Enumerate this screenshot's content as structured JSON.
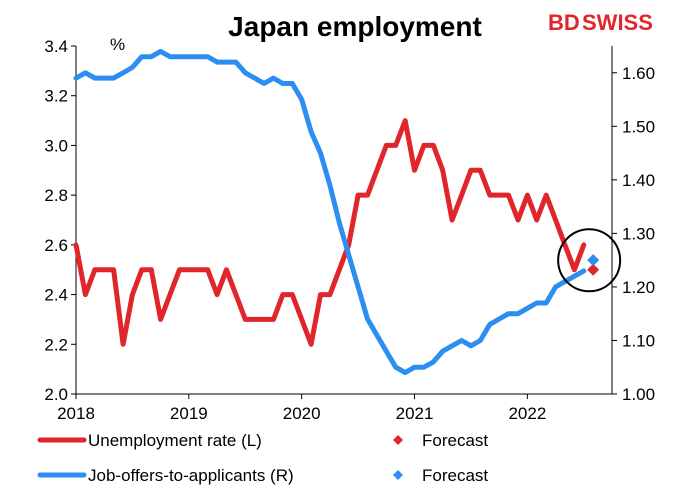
{
  "header": {
    "title": "Japan employment",
    "logo_text_left": "BD",
    "logo_text_right": "SWISS"
  },
  "colors": {
    "unemployment": "#e0262b",
    "job_offers": "#2b8ef0",
    "axis": "#000000",
    "circle": "#000000"
  },
  "chart_data": {
    "type": "line",
    "title": "Japan employment",
    "left_axis": {
      "unit_label": "%",
      "ylim": [
        2.0,
        3.4
      ],
      "ticks": [
        "2.0",
        "2.2",
        "2.4",
        "2.6",
        "2.8",
        "3.0",
        "3.2",
        "3.4"
      ]
    },
    "right_axis": {
      "ylim": [
        1.0,
        1.65
      ],
      "ticks": [
        "1.00",
        "1.10",
        "1.20",
        "1.30",
        "1.40",
        "1.50",
        "1.60"
      ]
    },
    "x_axis": {
      "ticks": [
        "2018",
        "2019",
        "2020",
        "2021",
        "2022"
      ],
      "xlim": [
        2018.0,
        2022.75
      ]
    },
    "series": [
      {
        "name": "Unemployment rate (L)",
        "axis": "left",
        "color": "#e0262b",
        "points": [
          [
            2018.0,
            2.6
          ],
          [
            2018.083,
            2.4
          ],
          [
            2018.167,
            2.5
          ],
          [
            2018.25,
            2.5
          ],
          [
            2018.333,
            2.5
          ],
          [
            2018.417,
            2.2
          ],
          [
            2018.5,
            2.4
          ],
          [
            2018.583,
            2.5
          ],
          [
            2018.667,
            2.5
          ],
          [
            2018.75,
            2.3
          ],
          [
            2018.833,
            2.4
          ],
          [
            2018.917,
            2.5
          ],
          [
            2019.0,
            2.5
          ],
          [
            2019.083,
            2.5
          ],
          [
            2019.167,
            2.5
          ],
          [
            2019.25,
            2.4
          ],
          [
            2019.333,
            2.5
          ],
          [
            2019.417,
            2.4
          ],
          [
            2019.5,
            2.3
          ],
          [
            2019.583,
            2.3
          ],
          [
            2019.667,
            2.3
          ],
          [
            2019.75,
            2.3
          ],
          [
            2019.833,
            2.4
          ],
          [
            2019.917,
            2.4
          ],
          [
            2020.0,
            2.3
          ],
          [
            2020.083,
            2.2
          ],
          [
            2020.167,
            2.4
          ],
          [
            2020.25,
            2.4
          ],
          [
            2020.333,
            2.5
          ],
          [
            2020.417,
            2.6
          ],
          [
            2020.5,
            2.8
          ],
          [
            2020.583,
            2.8
          ],
          [
            2020.667,
            2.9
          ],
          [
            2020.75,
            3.0
          ],
          [
            2020.833,
            3.0
          ],
          [
            2020.917,
            3.1
          ],
          [
            2021.0,
            2.9
          ],
          [
            2021.083,
            3.0
          ],
          [
            2021.167,
            3.0
          ],
          [
            2021.25,
            2.9
          ],
          [
            2021.333,
            2.7
          ],
          [
            2021.417,
            2.8
          ],
          [
            2021.5,
            2.9
          ],
          [
            2021.583,
            2.9
          ],
          [
            2021.667,
            2.8
          ],
          [
            2021.75,
            2.8
          ],
          [
            2021.833,
            2.8
          ],
          [
            2021.917,
            2.7
          ],
          [
            2022.0,
            2.8
          ],
          [
            2022.083,
            2.7
          ],
          [
            2022.167,
            2.8
          ],
          [
            2022.25,
            2.7
          ],
          [
            2022.333,
            2.6
          ],
          [
            2022.417,
            2.5
          ],
          [
            2022.5,
            2.6
          ]
        ]
      },
      {
        "name": "Job-offers-to-applicants (R)",
        "axis": "right",
        "color": "#2b8ef0",
        "points": [
          [
            2018.0,
            1.59
          ],
          [
            2018.083,
            1.6
          ],
          [
            2018.167,
            1.59
          ],
          [
            2018.25,
            1.59
          ],
          [
            2018.333,
            1.59
          ],
          [
            2018.417,
            1.6
          ],
          [
            2018.5,
            1.61
          ],
          [
            2018.583,
            1.63
          ],
          [
            2018.667,
            1.63
          ],
          [
            2018.75,
            1.64
          ],
          [
            2018.833,
            1.63
          ],
          [
            2018.917,
            1.63
          ],
          [
            2019.0,
            1.63
          ],
          [
            2019.083,
            1.63
          ],
          [
            2019.167,
            1.63
          ],
          [
            2019.25,
            1.62
          ],
          [
            2019.333,
            1.62
          ],
          [
            2019.417,
            1.62
          ],
          [
            2019.5,
            1.6
          ],
          [
            2019.583,
            1.59
          ],
          [
            2019.667,
            1.58
          ],
          [
            2019.75,
            1.59
          ],
          [
            2019.833,
            1.58
          ],
          [
            2019.917,
            1.58
          ],
          [
            2020.0,
            1.55
          ],
          [
            2020.083,
            1.49
          ],
          [
            2020.167,
            1.45
          ],
          [
            2020.25,
            1.39
          ],
          [
            2020.333,
            1.32
          ],
          [
            2020.417,
            1.26
          ],
          [
            2020.5,
            1.2
          ],
          [
            2020.583,
            1.14
          ],
          [
            2020.667,
            1.11
          ],
          [
            2020.75,
            1.08
          ],
          [
            2020.833,
            1.05
          ],
          [
            2020.917,
            1.04
          ],
          [
            2021.0,
            1.05
          ],
          [
            2021.083,
            1.05
          ],
          [
            2021.167,
            1.06
          ],
          [
            2021.25,
            1.08
          ],
          [
            2021.333,
            1.09
          ],
          [
            2021.417,
            1.1
          ],
          [
            2021.5,
            1.09
          ],
          [
            2021.583,
            1.1
          ],
          [
            2021.667,
            1.13
          ],
          [
            2021.75,
            1.14
          ],
          [
            2021.833,
            1.15
          ],
          [
            2021.917,
            1.15
          ],
          [
            2022.0,
            1.16
          ],
          [
            2022.083,
            1.17
          ],
          [
            2022.167,
            1.17
          ],
          [
            2022.25,
            1.2
          ],
          [
            2022.333,
            1.21
          ],
          [
            2022.417,
            1.22
          ],
          [
            2022.5,
            1.23
          ]
        ]
      }
    ],
    "forecasts": [
      {
        "name": "Forecast",
        "series": "Unemployment rate (L)",
        "axis": "left",
        "x": 2022.583,
        "y": 2.5,
        "color": "#e0262b"
      },
      {
        "name": "Forecast",
        "series": "Job-offers-to-applicants (R)",
        "axis": "right",
        "x": 2022.583,
        "y": 1.25,
        "color": "#2b8ef0"
      }
    ],
    "highlight_circle": {
      "x": 2022.583,
      "y_left": 2.55
    },
    "legend": [
      {
        "label": "Unemployment rate (L)",
        "kind": "line",
        "color": "#e0262b"
      },
      {
        "label": "Forecast",
        "kind": "marker",
        "color": "#e0262b"
      },
      {
        "label": "Job-offers-to-applicants (R)",
        "kind": "line",
        "color": "#2b8ef0"
      },
      {
        "label": "Forecast",
        "kind": "marker",
        "color": "#2b8ef0"
      }
    ],
    "grid": false,
    "legend_position": "bottom"
  }
}
